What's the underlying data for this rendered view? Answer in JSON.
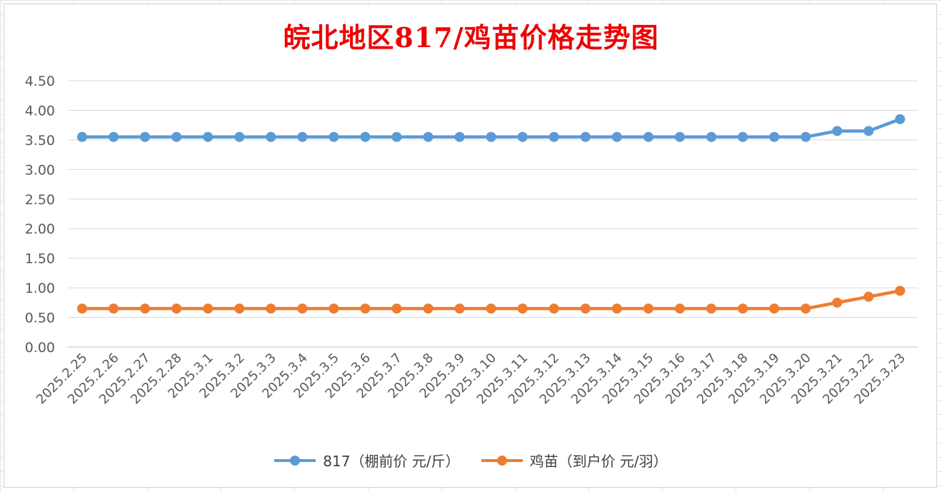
{
  "chart_data": {
    "type": "line",
    "title": "皖北地区817/鸡苗价格走势图",
    "categories": [
      "2025.2.25",
      "2025.2.26",
      "2025.2.27",
      "2025.2.28",
      "2025.3.1",
      "2025.3.2",
      "2025.3.3",
      "2025.3.4",
      "2025.3.5",
      "2025.3.6",
      "2025.3.7",
      "2025.3.8",
      "2025.3.9",
      "2025.3.10",
      "2025.3.11",
      "2025.3.12",
      "2025.3.13",
      "2025.3.14",
      "2025.3.15",
      "2025.3.16",
      "2025.3.17",
      "2025.3.18",
      "2025.3.19",
      "2025.3.20",
      "2025.3.21",
      "2025.3.22",
      "2025.3.23"
    ],
    "series": [
      {
        "name": "817（棚前价 元/斤）",
        "color": "#5b9bd5",
        "values": [
          3.55,
          3.55,
          3.55,
          3.55,
          3.55,
          3.55,
          3.55,
          3.55,
          3.55,
          3.55,
          3.55,
          3.55,
          3.55,
          3.55,
          3.55,
          3.55,
          3.55,
          3.55,
          3.55,
          3.55,
          3.55,
          3.55,
          3.55,
          3.55,
          3.65,
          3.65,
          3.85
        ]
      },
      {
        "name": "鸡苗（到户价 元/羽）",
        "color": "#ed7d31",
        "values": [
          0.65,
          0.65,
          0.65,
          0.65,
          0.65,
          0.65,
          0.65,
          0.65,
          0.65,
          0.65,
          0.65,
          0.65,
          0.65,
          0.65,
          0.65,
          0.65,
          0.65,
          0.65,
          0.65,
          0.65,
          0.65,
          0.65,
          0.65,
          0.65,
          0.75,
          0.85,
          0.95
        ]
      }
    ],
    "yticks": [
      "0.00",
      "0.50",
      "1.00",
      "1.50",
      "2.00",
      "2.50",
      "3.00",
      "3.50",
      "4.00",
      "4.50"
    ],
    "ylim": [
      0,
      4.5
    ],
    "grid": true,
    "legend_position": "bottom"
  }
}
